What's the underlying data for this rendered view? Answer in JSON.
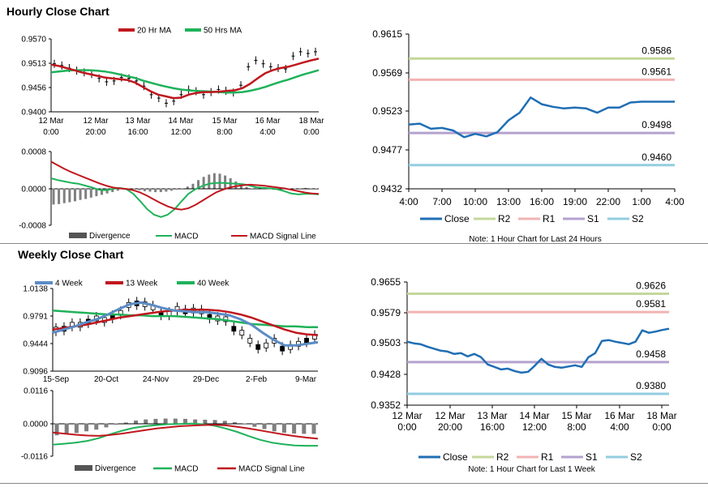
{
  "page": {
    "hourly_title": "Hourly Close Chart",
    "weekly_title": "Weekly Close Chart"
  },
  "colors": {
    "ma20": "#c0171e",
    "ma50": "#1fb25a",
    "divergence": "#7f7f7f",
    "macd": "#1fb25a",
    "signal": "#c0171e",
    "close": "#1f6eb4",
    "r2": "#c4d79b",
    "r1": "#f1b3b3",
    "s1": "#b4a2cf",
    "s2": "#93cde0",
    "wk4": "#5b8cc6",
    "wk13": "#c0171e",
    "wk40": "#1fb25a"
  },
  "chart_data": [
    {
      "id": "hourly_ma",
      "type": "line",
      "x_tick_labels": [
        [
          "12 Mar",
          "0:00"
        ],
        [
          "12 Mar",
          "20:00"
        ],
        [
          "13 Mar",
          "16:00"
        ],
        [
          "14 Mar",
          "12:00"
        ],
        [
          "15 Mar",
          "8:00"
        ],
        [
          "16 Mar",
          "4:00"
        ],
        [
          "18 Mar",
          "0:00"
        ]
      ],
      "y_tick_labels": [
        "0.9570",
        "0.9513",
        "0.9456",
        "0.9400"
      ],
      "ylim": [
        0.94,
        0.957
      ],
      "legend": [
        "20 Hr MA",
        "50 Hrs MA"
      ],
      "price": [
        0.9512,
        0.9508,
        0.9502,
        0.9496,
        0.9492,
        0.9488,
        0.9478,
        0.947,
        0.9472,
        0.948,
        0.9478,
        0.9472,
        0.946,
        0.944,
        0.9432,
        0.942,
        0.9425,
        0.944,
        0.9452,
        0.9448,
        0.944,
        0.9446,
        0.9452,
        0.9449,
        0.9445,
        0.9462,
        0.9505,
        0.952,
        0.9512,
        0.9505,
        0.9502,
        0.95,
        0.953,
        0.954,
        0.9536,
        0.954
      ],
      "series": [
        {
          "name": "20 Hr MA",
          "values": [
            0.951,
            0.9507,
            0.9502,
            0.9497,
            0.9492,
            0.9488,
            0.9484,
            0.948,
            0.9478,
            0.9476,
            0.9474,
            0.9468,
            0.9458,
            0.9448,
            0.944,
            0.9436,
            0.9432,
            0.9433,
            0.944,
            0.9444,
            0.9446,
            0.9446,
            0.9447,
            0.9449,
            0.945,
            0.9455,
            0.9465,
            0.9478,
            0.949,
            0.9497,
            0.9502,
            0.9505,
            0.951,
            0.9515,
            0.952,
            0.9524
          ]
        },
        {
          "name": "50 Hrs MA",
          "values": [
            0.9492,
            0.9494,
            0.9496,
            0.9497,
            0.9497,
            0.9497,
            0.9496,
            0.9494,
            0.9491,
            0.9487,
            0.9483,
            0.9479,
            0.9473,
            0.9468,
            0.9463,
            0.9459,
            0.9455,
            0.9452,
            0.945,
            0.9449,
            0.9448,
            0.9447,
            0.9446,
            0.9445,
            0.9445,
            0.9446,
            0.9449,
            0.9453,
            0.9458,
            0.9464,
            0.947,
            0.9475,
            0.9481,
            0.9487,
            0.9492,
            0.9497
          ]
        }
      ]
    },
    {
      "id": "hourly_macd",
      "type": "bar",
      "y_tick_labels": [
        "0.0008",
        "0.0000",
        "-0.0008"
      ],
      "ylim": [
        -0.0008,
        0.0008
      ],
      "legend": [
        "Divergence",
        "MACD",
        "MACD Signal Line"
      ],
      "divergence": [
        -0.00035,
        -0.00034,
        -0.00032,
        -0.0003,
        -0.00028,
        -0.00025,
        -0.00023,
        -0.0002,
        -0.00017,
        -0.00014,
        -0.00011,
        -8e-05,
        -5e-05,
        -2e-05,
        0.0,
        -2e-05,
        -4e-05,
        -6e-05,
        -7e-05,
        -8e-05,
        -8e-05,
        -7e-05,
        -5e-05,
        -3e-05,
        0.0,
        4e-05,
        0.0001,
        0.00018,
        0.00025,
        0.0003,
        0.00033,
        0.00032,
        0.00028,
        0.00022,
        0.00015,
        8e-05,
        3e-05,
        0.0,
        0.0,
        0.0,
        -2e-05,
        -3e-05,
        0.0,
        2e-05,
        0.0,
        -2e-05,
        0.0,
        1e-05,
        0.0,
        0.0
      ],
      "series": [
        {
          "name": "MACD",
          "values": [
            0.00022,
            0.00018,
            0.00015,
            0.00012,
            0.0001,
            6e-05,
            2e-05,
            -3e-05,
            -4e-05,
            -1e-05,
            1e-05,
            -2e-05,
            -0.00012,
            -0.00028,
            -0.00045,
            -0.00057,
            -0.00062,
            -0.00057,
            -0.00045,
            -0.00028,
            -0.00012,
            -2e-05,
            5e-05,
            0.0001,
            0.00012,
            0.00012,
            0.00011,
            0.0001,
            9e-05,
            6e-05,
            2e-05,
            1e-05,
            0.0,
            -2e-05,
            -6e-05,
            -0.00011,
            -0.00013,
            -0.00012,
            -0.00012,
            -0.00013
          ]
        },
        {
          "name": "MACD Signal Line",
          "values": [
            0.00058,
            0.0005,
            0.00042,
            0.00035,
            0.00029,
            0.00023,
            0.00017,
            0.00011,
            6e-05,
            2e-05,
            0.0,
            -1e-05,
            -4e-05,
            -9e-05,
            -0.00016,
            -0.00024,
            -0.00032,
            -0.00039,
            -0.00044,
            -0.00046,
            -0.00043,
            -0.00036,
            -0.00027,
            -0.00018,
            -9e-05,
            -3e-05,
            2e-05,
            5e-05,
            7e-05,
            8e-05,
            7e-05,
            6e-05,
            4e-05,
            2e-05,
            0.0,
            -3e-05,
            -6e-05,
            -9e-05,
            -0.00011,
            -0.00012
          ]
        }
      ]
    },
    {
      "id": "hourly_24h",
      "type": "line",
      "x_tick_labels": [
        "4:00",
        "7:00",
        "10:00",
        "13:00",
        "16:00",
        "19:00",
        "22:00",
        "1:00",
        "4:00"
      ],
      "y_tick_labels": [
        "0.9615",
        "0.9569",
        "0.9523",
        "0.9477",
        "0.9432"
      ],
      "ylim": [
        0.9432,
        0.9615
      ],
      "levels": [
        {
          "name": "R2",
          "value": 0.9586,
          "label": "0.9586"
        },
        {
          "name": "R1",
          "value": 0.9561,
          "label": "0.9561"
        },
        {
          "name": "S1",
          "value": 0.9498,
          "label": "0.9498"
        },
        {
          "name": "S2",
          "value": 0.946,
          "label": "0.9460"
        }
      ],
      "series": [
        {
          "name": "Close",
          "values": [
            0.9508,
            0.9509,
            0.9503,
            0.9504,
            0.9501,
            0.9493,
            0.9497,
            0.9494,
            0.9499,
            0.9513,
            0.9522,
            0.954,
            0.9532,
            0.9529,
            0.9527,
            0.9528,
            0.9527,
            0.9522,
            0.9528,
            0.9528,
            0.9534,
            0.9535,
            0.9535,
            0.9535,
            0.9535
          ]
        }
      ],
      "legend": [
        "Close",
        "R2",
        "R1",
        "S1",
        "S2"
      ],
      "note": "Note: 1 Hour Chart for Last 24 Hours"
    },
    {
      "id": "weekly_ma",
      "type": "line",
      "x_tick_labels": [
        "15-Sep",
        "20-Oct",
        "24-Nov",
        "29-Dec",
        "2-Feb",
        "9-Mar"
      ],
      "y_tick_labels": [
        "1.0138",
        "0.9791",
        "0.9444",
        "0.9096"
      ],
      "ylim": [
        0.9096,
        1.0138
      ],
      "legend": [
        "4 Week",
        "13 Week",
        "40 Week"
      ],
      "candles": [
        0.962,
        0.963,
        0.968,
        0.968,
        0.972,
        0.976,
        0.974,
        0.978,
        0.983,
        0.993,
        0.995,
        0.994,
        0.99,
        0.982,
        0.982,
        0.988,
        0.985,
        0.986,
        0.985,
        0.978,
        0.976,
        0.975,
        0.963,
        0.958,
        0.948,
        0.94,
        0.942,
        0.948,
        0.938,
        0.94,
        0.944,
        0.948,
        0.953
      ],
      "series": [
        {
          "name": "4 Week",
          "values": [
            0.958,
            0.962,
            0.966,
            0.971,
            0.975,
            0.981,
            0.988,
            0.994,
            0.996,
            0.993,
            0.989,
            0.986,
            0.985,
            0.984,
            0.984,
            0.982,
            0.98,
            0.975,
            0.968,
            0.958,
            0.949,
            0.942,
            0.942,
            0.944,
            0.946
          ]
        },
        {
          "name": "13 Week",
          "values": [
            0.962,
            0.964,
            0.966,
            0.968,
            0.971,
            0.974,
            0.977,
            0.979,
            0.981,
            0.983,
            0.985,
            0.986,
            0.987,
            0.987,
            0.987,
            0.986,
            0.984,
            0.981,
            0.977,
            0.972,
            0.967,
            0.962,
            0.958,
            0.956,
            0.955
          ]
        },
        {
          "name": "40 Week",
          "values": [
            0.986,
            0.985,
            0.984,
            0.983,
            0.982,
            0.981,
            0.981,
            0.98,
            0.98,
            0.979,
            0.979,
            0.979,
            0.978,
            0.977,
            0.976,
            0.975,
            0.973,
            0.971,
            0.969,
            0.968,
            0.967,
            0.966,
            0.966,
            0.965,
            0.965
          ]
        }
      ]
    },
    {
      "id": "weekly_macd",
      "type": "bar",
      "y_tick_labels": [
        "0.0116",
        "0.0000",
        "-0.0116"
      ],
      "ylim": [
        -0.0116,
        0.0116
      ],
      "legend": [
        "Divergence",
        "MACD",
        "MACD Signal Line"
      ],
      "divergence": [
        -0.0042,
        -0.0038,
        -0.0034,
        -0.0028,
        -0.0022,
        -0.0014,
        -0.0005,
        0.0003,
        0.001,
        0.0014,
        0.0016,
        0.0017,
        0.0017,
        0.0016,
        0.0014,
        0.0013,
        0.0012,
        0.0009,
        0.0004,
        -0.0004,
        -0.0012,
        -0.002,
        -0.0028,
        -0.0033,
        -0.0036,
        -0.0037,
        -0.0037
      ],
      "series": [
        {
          "name": "MACD",
          "values": [
            -0.0075,
            -0.0072,
            -0.0068,
            -0.0062,
            -0.0052,
            -0.0038,
            -0.0026,
            -0.0016,
            -0.001,
            -0.0006,
            -0.0003,
            -0.0002,
            -0.0001,
            -0.0003,
            -0.0008,
            -0.0018,
            -0.003,
            -0.0045,
            -0.0058,
            -0.0068,
            -0.0074,
            -0.0078,
            -0.0079,
            -0.0079
          ]
        },
        {
          "name": "MACD Signal Line",
          "values": [
            -0.0032,
            -0.0036,
            -0.004,
            -0.0043,
            -0.0044,
            -0.0041,
            -0.0036,
            -0.003,
            -0.0024,
            -0.0018,
            -0.0014,
            -0.001,
            -0.0008,
            -0.0006,
            -0.0005,
            -0.0007,
            -0.0012,
            -0.0018,
            -0.0025,
            -0.0032,
            -0.0039,
            -0.0045,
            -0.005,
            -0.0054
          ]
        }
      ]
    },
    {
      "id": "weekly_1w",
      "type": "line",
      "x_tick_labels": [
        [
          "12 Mar",
          "0:00"
        ],
        [
          "12 Mar",
          "20:00"
        ],
        [
          "13 Mar",
          "16:00"
        ],
        [
          "14 Mar",
          "12:00"
        ],
        [
          "15 Mar",
          "8:00"
        ],
        [
          "16 Mar",
          "4:00"
        ],
        [
          "18 Mar",
          "0:00"
        ]
      ],
      "y_tick_labels": [
        "0.9655",
        "0.9579",
        "0.9503",
        "0.9428",
        "0.9352"
      ],
      "ylim": [
        0.9352,
        0.9655
      ],
      "levels": [
        {
          "name": "R2",
          "value": 0.9626,
          "label": "0.9626"
        },
        {
          "name": "R1",
          "value": 0.9581,
          "label": "0.9581"
        },
        {
          "name": "S1",
          "value": 0.9458,
          "label": "0.9458"
        },
        {
          "name": "S2",
          "value": 0.938,
          "label": "0.9380"
        }
      ],
      "series": [
        {
          "name": "Close",
          "values": [
            0.9508,
            0.9504,
            0.9502,
            0.9496,
            0.9491,
            0.9486,
            0.9484,
            0.9478,
            0.948,
            0.9472,
            0.9478,
            0.947,
            0.9452,
            0.9446,
            0.944,
            0.9442,
            0.9436,
            0.9432,
            0.9434,
            0.9449,
            0.9466,
            0.9452,
            0.9446,
            0.9444,
            0.9447,
            0.945,
            0.9446,
            0.947,
            0.948,
            0.951,
            0.9512,
            0.9508,
            0.9505,
            0.9502,
            0.9508,
            0.9536,
            0.953,
            0.9533,
            0.9537,
            0.954
          ]
        }
      ],
      "legend": [
        "Close",
        "R2",
        "R1",
        "S1",
        "S2"
      ],
      "note": "Note: 1 Hour Chart for Last 1 Week"
    }
  ]
}
